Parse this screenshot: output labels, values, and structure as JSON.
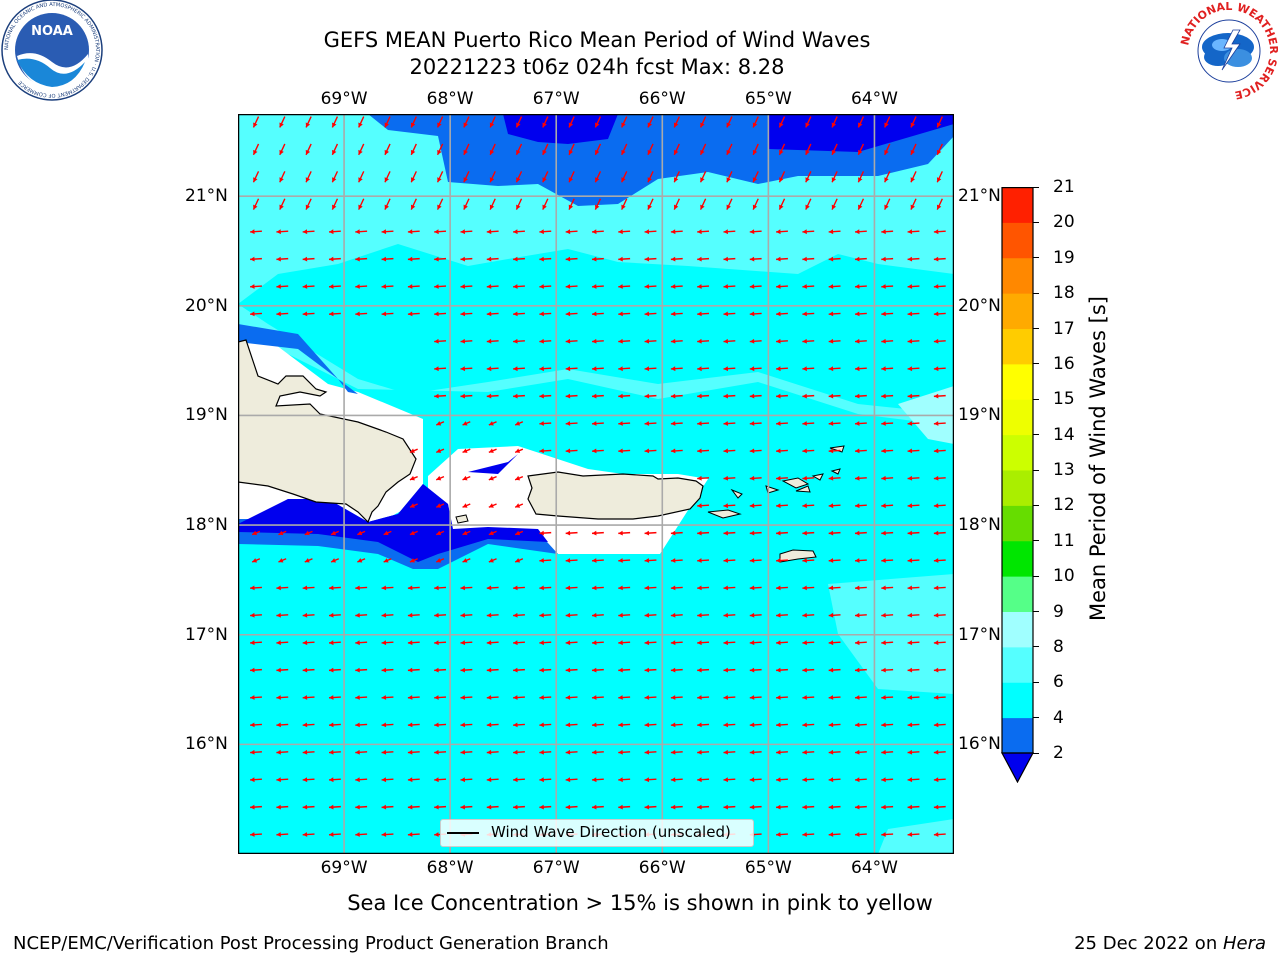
{
  "header": {
    "title_line1": "GEFS MEAN Puerto Rico Mean Period of Wind Waves",
    "title_line2": "20221223 t06z 024h fcst   Max: 8.28"
  },
  "logos": {
    "left": "NOAA",
    "left_ring_text": "NATIONAL OCEANIC AND ATMOSPHERIC ADMINISTRATION · U.S. DEPARTMENT OF COMMERCE",
    "right_ring_text": "NATIONAL WEATHER SERVICE"
  },
  "map": {
    "lon_ticks": [
      "69°W",
      "68°W",
      "67°W",
      "66°W",
      "65°W",
      "64°W"
    ],
    "lat_ticks": [
      "21°N",
      "20°N",
      "19°N",
      "18°N",
      "17°N",
      "16°N"
    ],
    "lon_range": [
      -70.0,
      -63.25
    ],
    "lat_range": [
      15.0,
      21.75
    ],
    "grid": true,
    "arrow_color": "#ff0000",
    "land_color": "#eeecdc",
    "legend_label": "Wind Wave Direction (unscaled)"
  },
  "colorbar": {
    "title": "Mean Period of Wind Waves [s]",
    "labels": [
      "2",
      "4",
      "6",
      "8",
      "9",
      "10",
      "11",
      "12",
      "13",
      "14",
      "15",
      "16",
      "17",
      "18",
      "19",
      "20",
      "21"
    ],
    "colors": [
      "#0000ee",
      "#0a6cf0",
      "#00ffff",
      "#55ffff",
      "#a0ffff",
      "#55ff88",
      "#00e600",
      "#66dd00",
      "#aaee00",
      "#ccff00",
      "#eeff00",
      "#ffff00",
      "#ffcc00",
      "#ffaa00",
      "#ff8800",
      "#ff5500",
      "#ff2000",
      "#ff0000"
    ],
    "under_color": "#0000ee"
  },
  "footer": {
    "note": "Sea Ice Concentration > 15% is shown in pink to yellow",
    "left": "NCEP/EMC/Verification Post Processing Product Generation Branch",
    "right_prefix": "25 Dec 2022 on ",
    "right_italic": "Hera"
  }
}
